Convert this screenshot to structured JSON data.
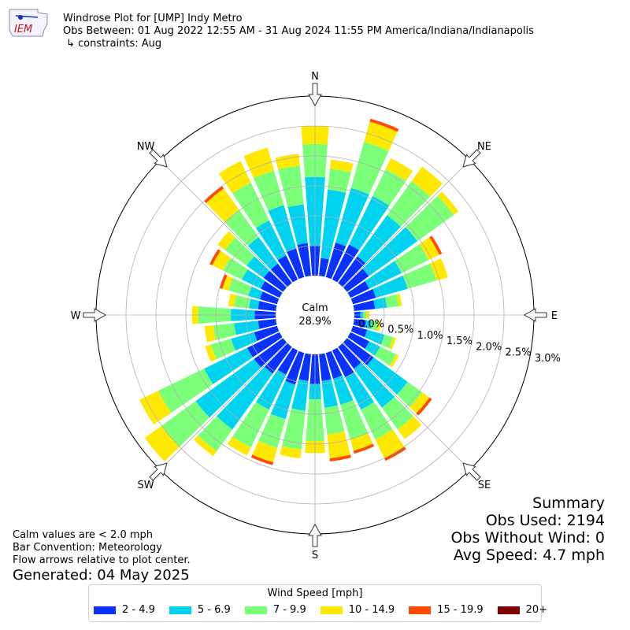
{
  "header": {
    "title": "Windrose Plot for [UMP] Indy Metro",
    "subtitle": "Obs Between: 01 Aug 2022 12:55 AM - 31 Aug 2024 11:55 PM America/Indiana/Indianapolis",
    "constraints": "↳ constraints: Aug"
  },
  "logo": {
    "text": "IEM",
    "icon": "iem-logo-icon"
  },
  "notes": {
    "calm_note": "Calm values are < 2.0 mph",
    "bar_convention": "Bar Convention: Meteorology",
    "flow_note": "Flow arrows relative to plot center.",
    "generated": "Generated: 04 May 2025"
  },
  "summary": {
    "title": "Summary",
    "obs_used": "Obs Used: 2194",
    "obs_without_wind": "Obs Without Wind: 0",
    "avg_speed": "Avg Speed: 4.7 mph"
  },
  "legend": {
    "title": "Wind Speed [mph]",
    "items": [
      {
        "label": "2 - 4.9",
        "color": "#0a32ff"
      },
      {
        "label": "5 - 6.9",
        "color": "#00d3f0"
      },
      {
        "label": "7 - 9.9",
        "color": "#7cff78"
      },
      {
        "label": "10 - 14.9",
        "color": "#ffe800"
      },
      {
        "label": "15 - 19.9",
        "color": "#ff4a00"
      },
      {
        "label": "20+",
        "color": "#800000"
      }
    ]
  },
  "chart_data": {
    "type": "windrose",
    "calm_label": "Calm",
    "calm_value": "28.9%",
    "radial_ticks": [
      "0.0%",
      "0.5%",
      "1.0%",
      "1.5%",
      "2.0%",
      "2.5%",
      "3.0%"
    ],
    "radial_max": 3.0,
    "compass_labels": [
      "N",
      "NE",
      "E",
      "SE",
      "S",
      "SW",
      "W",
      "NW"
    ],
    "directions_deg": [
      0,
      10,
      20,
      30,
      40,
      50,
      60,
      70,
      80,
      90,
      100,
      110,
      120,
      130,
      140,
      150,
      160,
      170,
      180,
      190,
      200,
      210,
      220,
      230,
      240,
      250,
      260,
      270,
      280,
      290,
      300,
      310,
      320,
      330,
      340,
      350
    ],
    "bins": [
      "2 - 4.9",
      "5 - 6.9",
      "7 - 9.9",
      "10 - 14.9",
      "15 - 19.9",
      "20+"
    ],
    "cumulative": [
      [
        0.5,
        1.65,
        2.2,
        2.5,
        2.5,
        2.5
      ],
      [
        0.3,
        1.45,
        1.8,
        1.95,
        1.95,
        1.95
      ],
      [
        0.6,
        1.55,
        2.35,
        2.7,
        2.75,
        2.75
      ],
      [
        0.65,
        1.55,
        2.05,
        2.25,
        2.25,
        2.25
      ],
      [
        0.55,
        1.4,
        2.1,
        2.4,
        2.4,
        2.4
      ],
      [
        0.45,
        1.45,
        2.2,
        2.3,
        2.3,
        2.3
      ],
      [
        0.35,
        0.95,
        1.45,
        1.65,
        1.7,
        1.7
      ],
      [
        0.4,
        0.95,
        1.45,
        1.65,
        1.65,
        1.65
      ],
      [
        0.35,
        0.55,
        0.75,
        0.8,
        0.8,
        0.8
      ],
      [
        0.1,
        0.15,
        0.2,
        0.25,
        0.25,
        0.25
      ],
      [
        0.2,
        0.3,
        0.4,
        0.45,
        0.45,
        0.45
      ],
      [
        0.25,
        0.55,
        0.7,
        0.75,
        0.75,
        0.75
      ],
      [
        0.35,
        0.55,
        0.85,
        0.9,
        0.9,
        0.9
      ],
      [
        0.55,
        1.25,
        1.55,
        1.7,
        1.75,
        1.75
      ],
      [
        0.45,
        1.25,
        1.7,
        1.9,
        1.9,
        1.9
      ],
      [
        0.5,
        1.1,
        1.65,
        2.0,
        2.05,
        2.05
      ],
      [
        0.45,
        0.9,
        1.5,
        1.7,
        1.75,
        1.75
      ],
      [
        0.45,
        0.9,
        1.35,
        1.75,
        1.8,
        1.8
      ],
      [
        0.5,
        0.75,
        1.45,
        1.65,
        1.65,
        1.65
      ],
      [
        0.45,
        0.95,
        1.6,
        1.75,
        1.75,
        1.75
      ],
      [
        0.55,
        1.15,
        1.65,
        1.9,
        1.95,
        1.95
      ],
      [
        0.45,
        1.1,
        1.8,
        1.95,
        1.95,
        1.95
      ],
      [
        0.55,
        1.7,
        2.15,
        2.25,
        2.25,
        2.25
      ],
      [
        0.6,
        1.8,
        2.5,
        2.85,
        2.85,
        2.85
      ],
      [
        0.6,
        1.4,
        2.25,
        2.6,
        2.6,
        2.6
      ],
      [
        0.4,
        0.8,
        1.15,
        1.25,
        1.25,
        1.25
      ],
      [
        0.3,
        0.7,
        1.05,
        1.2,
        1.2,
        1.2
      ],
      [
        0.35,
        0.75,
        1.3,
        1.4,
        1.4,
        1.4
      ],
      [
        0.3,
        0.45,
        0.7,
        0.8,
        0.8,
        0.8
      ],
      [
        0.3,
        0.5,
        0.85,
        0.95,
        1.0,
        1.0
      ],
      [
        0.35,
        0.7,
        1.05,
        1.25,
        1.3,
        1.3
      ],
      [
        0.4,
        0.75,
        1.2,
        1.35,
        1.35,
        1.35
      ],
      [
        0.4,
        0.95,
        1.5,
        1.95,
        2.0,
        2.0
      ],
      [
        0.45,
        1.1,
        1.8,
        2.2,
        2.2,
        2.2
      ],
      [
        0.5,
        1.25,
        1.85,
        2.25,
        2.25,
        2.25
      ],
      [
        0.55,
        1.2,
        1.85,
        2.05,
        2.05,
        2.05
      ]
    ]
  }
}
